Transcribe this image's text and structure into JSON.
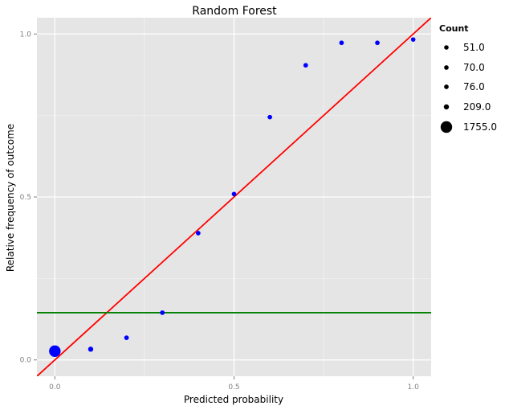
{
  "chart_data": {
    "type": "scatter",
    "title": "Random Forest",
    "xlabel": "Predicted probability",
    "ylabel": "Relative frequency of outcome",
    "xlim": [
      -0.05,
      1.05
    ],
    "ylim": [
      -0.05,
      1.05
    ],
    "x_ticks": [
      0.0,
      0.5,
      1.0
    ],
    "x_tick_labels": [
      "0.0",
      "0.5",
      "1.0"
    ],
    "y_ticks": [
      0.0,
      0.5,
      1.0
    ],
    "y_tick_labels": [
      "0.0",
      "0.5",
      "1.0"
    ],
    "grid": true,
    "legend_position": "right",
    "point_color": "#0000ff",
    "points": [
      {
        "x": 0.0,
        "y": 0.027,
        "count": 1755
      },
      {
        "x": 0.1,
        "y": 0.033,
        "count": 209
      },
      {
        "x": 0.2,
        "y": 0.068,
        "count": 76
      },
      {
        "x": 0.3,
        "y": 0.145,
        "count": 76
      },
      {
        "x": 0.4,
        "y": 0.389,
        "count": 70
      },
      {
        "x": 0.5,
        "y": 0.509,
        "count": 70
      },
      {
        "x": 0.6,
        "y": 0.745,
        "count": 70
      },
      {
        "x": 0.7,
        "y": 0.904,
        "count": 70
      },
      {
        "x": 0.8,
        "y": 0.973,
        "count": 70
      },
      {
        "x": 0.9,
        "y": 0.973,
        "count": 70
      },
      {
        "x": 1.0,
        "y": 0.983,
        "count": 51
      }
    ],
    "reference_lines": [
      {
        "kind": "diagonal",
        "color": "#ff0000",
        "slope": 1,
        "intercept": 0
      },
      {
        "kind": "horizontal",
        "color": "#008000",
        "y": 0.145
      }
    ],
    "size_legend": {
      "title": "Count",
      "entries": [
        {
          "label": "51.0",
          "count": 51
        },
        {
          "label": "70.0",
          "count": 70
        },
        {
          "label": "76.0",
          "count": 76
        },
        {
          "label": "209.0",
          "count": 209
        },
        {
          "label": "1755.0",
          "count": 1755
        }
      ]
    }
  }
}
